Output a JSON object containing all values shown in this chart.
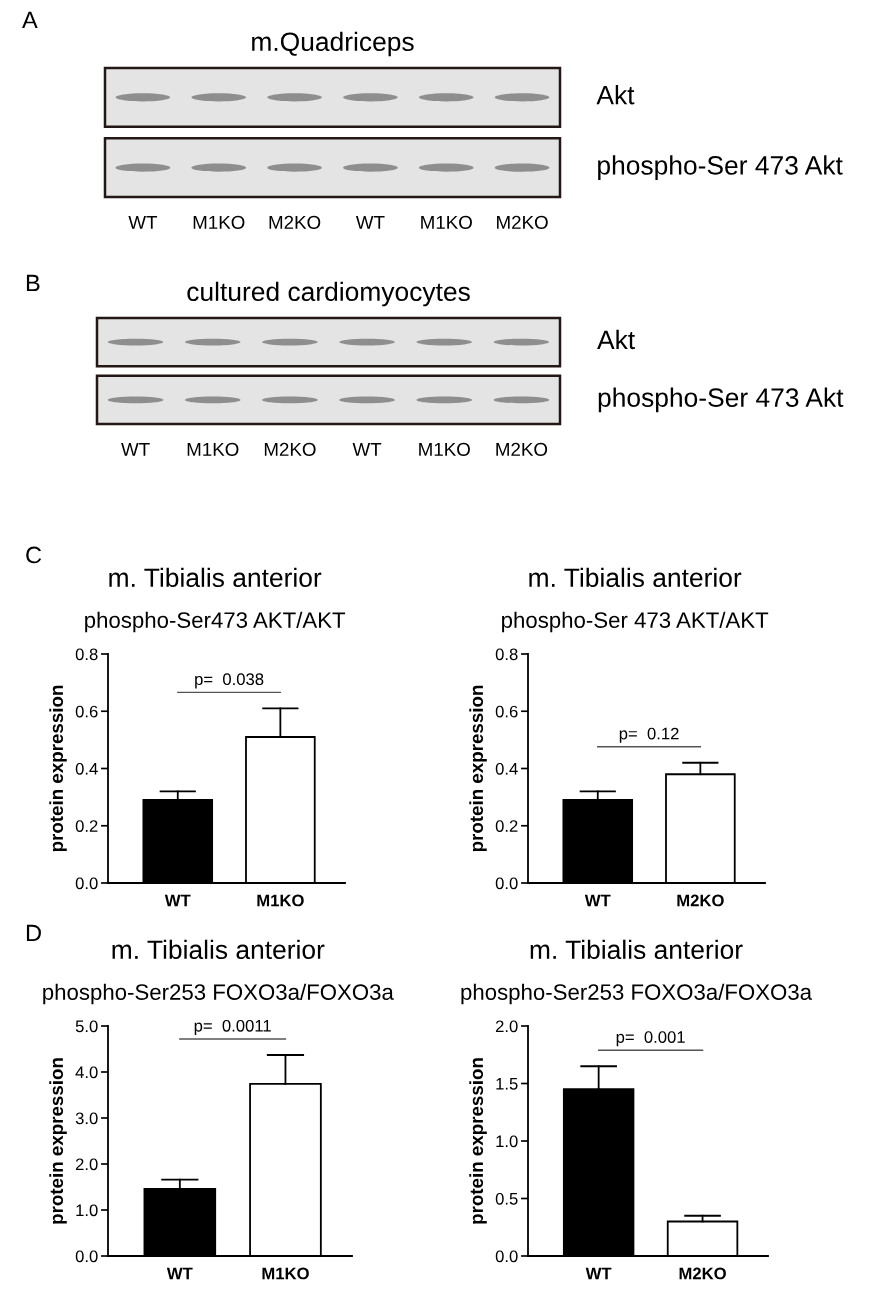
{
  "chart_data": [
    {
      "type": "other",
      "title": "m.Quadriceps",
      "categories": [
        "WT",
        "M1KO",
        "M2KO",
        "WT",
        "M1KO",
        "M2KO"
      ],
      "y_categories": [
        "Akt",
        "phospho-Ser 473 Akt"
      ],
      "annotations": [
        "A"
      ]
    },
    {
      "type": "other",
      "title": "cultured cardiomyocytes",
      "categories": [
        "WT",
        "M1KO",
        "M2KO",
        "WT",
        "M1KO",
        "M2KO"
      ],
      "y_categories": [
        "Akt",
        "phospho-Ser 473 Akt"
      ],
      "annotations": [
        "B"
      ]
    },
    {
      "type": "bar",
      "title": "m. Tibialis anterior",
      "subtitle": "phospho-Ser473 AKT/AKT",
      "ylabel": "protein expression",
      "categories": [
        "WT",
        "M1KO"
      ],
      "values": [
        0.29,
        0.51
      ],
      "colors": [
        "#000000",
        "#ffffff"
      ],
      "errors": [
        [
          0.29,
          0.32
        ],
        [
          0.51,
          0.61
        ]
      ],
      "ylim": [
        0,
        0.8
      ],
      "yticks": [
        {
          "value": 0,
          "label": "0.0"
        },
        0.2,
        0.4,
        0.6,
        0.8
      ],
      "annotations": [
        "C",
        "p=  0.038"
      ]
    },
    {
      "type": "bar",
      "title": "m. Tibialis anterior",
      "subtitle": "phospho-Ser 473 AKT/AKT",
      "ylabel": "protein expression",
      "categories": [
        "WT",
        "M2KO"
      ],
      "values": [
        0.29,
        0.38
      ],
      "colors": [
        "#000000",
        "#ffffff"
      ],
      "errors": [
        [
          0.29,
          0.32
        ],
        [
          0.38,
          0.42
        ]
      ],
      "ylim": [
        0,
        0.8
      ],
      "yticks": [
        {
          "value": 0,
          "label": "0.0"
        },
        0.2,
        0.4,
        0.6,
        0.8
      ],
      "annotations": [
        "p=  0.12"
      ]
    },
    {
      "type": "bar",
      "title": "m. Tibialis anterior",
      "subtitle": "phospho-Ser253 FOXO3a/FOXO3a",
      "ylabel": "protein expression",
      "categories": [
        "WT",
        "M1KO"
      ],
      "values": [
        1.46,
        3.74
      ],
      "colors": [
        "#000000",
        "#ffffff"
      ],
      "errors": [
        [
          1.46,
          1.66
        ],
        [
          3.74,
          4.37
        ]
      ],
      "ylim": [
        0,
        5
      ],
      "yticks": [
        {
          "value": 0,
          "label": "0.0"
        },
        {
          "value": 1,
          "label": "1.0"
        },
        {
          "value": 2,
          "label": "2.0"
        },
        {
          "value": 3,
          "label": "3.0"
        },
        {
          "value": 4,
          "label": "4.0"
        },
        {
          "value": 5,
          "label": "5.0"
        }
      ],
      "annotations": [
        "D",
        "p=  0.0011"
      ]
    },
    {
      "type": "bar",
      "title": "m. Tibialis anterior",
      "subtitle": "phospho-Ser253 FOXO3a/FOXO3a",
      "ylabel": "protein expression",
      "categories": [
        "WT",
        "M2KO"
      ],
      "values": [
        1.45,
        0.3
      ],
      "colors": [
        "#000000",
        "#ffffff"
      ],
      "errors": [
        [
          1.45,
          1.65
        ],
        [
          0.3,
          0.35
        ]
      ],
      "ylim": [
        0,
        2
      ],
      "yticks": [
        {
          "value": 0,
          "label": "0.0"
        },
        0.5,
        {
          "value": 1,
          "label": "1.0"
        },
        1.5,
        {
          "value": 2,
          "label": "2.0"
        }
      ],
      "annotations": [
        "p=  0.001"
      ]
    }
  ]
}
